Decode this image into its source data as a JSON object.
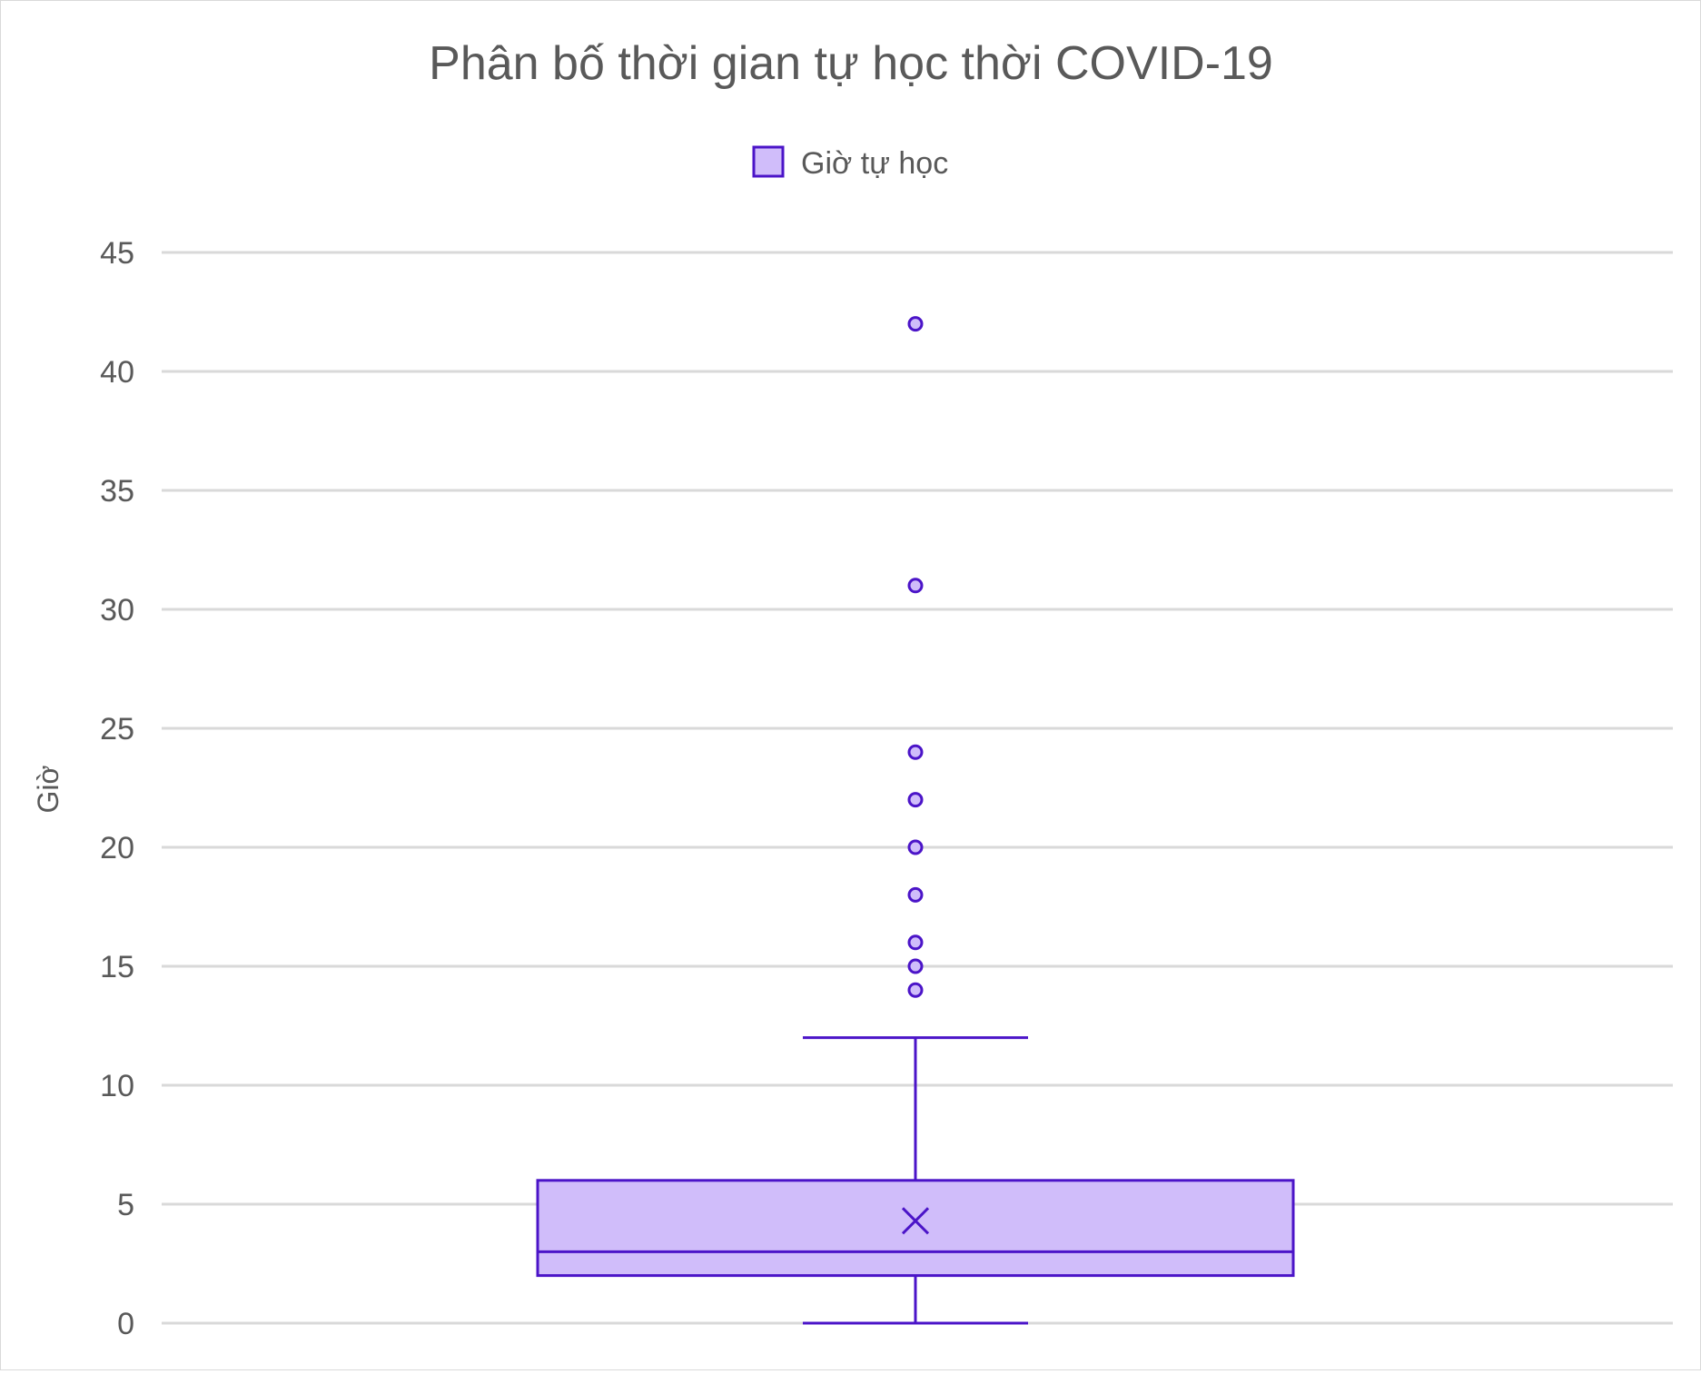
{
  "chart_data": {
    "type": "box",
    "title": "Phân bố thời gian tự học thời COVID-19",
    "xlabel": "",
    "ylabel": "Giờ",
    "ylim": [
      0,
      45
    ],
    "yticks": [
      0,
      5,
      10,
      15,
      20,
      25,
      30,
      35,
      40,
      45
    ],
    "grid": true,
    "legend_position": "top",
    "series": [
      {
        "name": "Giờ tự học",
        "whisker_low": 0,
        "q1": 2,
        "median": 3,
        "q3": 6,
        "whisker_high": 12,
        "mean": 4.3,
        "outliers": [
          14,
          15,
          16,
          18,
          20,
          22,
          24,
          31,
          42
        ]
      }
    ],
    "colors": {
      "box_fill": "#d0bdfa",
      "stroke": "#4b14c8",
      "grid": "#d9d9d9",
      "text": "#595959"
    }
  }
}
